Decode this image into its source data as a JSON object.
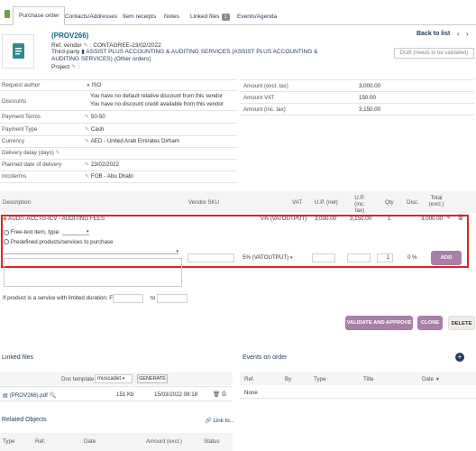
{
  "tabs": [
    {
      "label": "Purchase order"
    },
    {
      "label": "Contacts/Addresses"
    },
    {
      "label": "Item receipts"
    },
    {
      "label": "Notes"
    },
    {
      "label": "Linked files",
      "badge": "1"
    },
    {
      "label": "Events/Agenda"
    }
  ],
  "header": {
    "ref": "(PROV266)",
    "ref_vendor_label": "Ref. vendor",
    "ref_vendor_value": ": CONTAGREE-23/02/2022",
    "third_party_label": "Third-party",
    "third_party_value": "ASSIST PLUS ACCOUNTING & AUDITING SERVICES (ASSIST PLUS ACCOUNTING & AUDITING SERVICES)",
    "other_orders": "(Other orders)",
    "project_label": "Project",
    "back_to_list": "Back to list",
    "status": "Draft (needs to be validated)"
  },
  "details": {
    "request_author_label": "Request author",
    "request_author_value": "ISO",
    "discounts_label": "Discounts",
    "discount_line1": "You have no default relative discount from this vendor",
    "discount_line2": "You have no discount credit available from this vendor",
    "payment_terms_label": "Payment Terms",
    "payment_terms_value": "50-50",
    "payment_type_label": "Payment Type",
    "payment_type_value": "Cash",
    "currency_label": "Currency",
    "currency_value": "AED - United Arab Emirates Dirham",
    "delivery_delay_label": "Delivery delay (days)",
    "planned_delivery_label": "Planned date of delivery",
    "planned_delivery_value": "23/02/2022",
    "incoterms_label": "Incoterms",
    "incoterms_value": "FOB - Abu Dhabi"
  },
  "amounts": {
    "excl_label": "Amount (excl. tax)",
    "excl_value": "3,000.00",
    "vat_label": "Amount VAT",
    "vat_value": "150.00",
    "inc_label": "Amount (inc. tax)",
    "inc_value": "3,150.00"
  },
  "lines_table": {
    "headers": {
      "description": "Description",
      "vendor_sku": "Vendor SKU",
      "vat": "VAT",
      "up_net": "U.P. (net)",
      "up_inc_1": "U.P. (inc.",
      "up_inc_2": "tax)",
      "qty": "Qty",
      "disc": "Disc.",
      "total_1": "Total",
      "total_2": "(excl.)"
    },
    "line": {
      "description": "AUDIT-ACCTG-ICV - AUDITING FEES",
      "vat": "5% (VATOUTPUT)",
      "up_net": "3,000.00",
      "up_inc": "3,150.00",
      "qty": "1",
      "total": "3,000.00"
    }
  },
  "add_line": {
    "free_text_label": "Free-text item, type:",
    "predefined_label": "Predefined products/services to purchase",
    "vat_select": "5% (VATOUTPUT)",
    "qty_value": "1",
    "disc_value": "0 %",
    "add_button": "ADD",
    "service_text": "If product is a service with limited duration: From",
    "to_text": "to"
  },
  "actions": {
    "validate": "VALIDATE AND APPROVE",
    "clone": "CLONE",
    "delete": "DELETE"
  },
  "linked_files": {
    "title": "Linked files",
    "doc_template_label": "Doc template",
    "doc_template_value": "muscadet",
    "generate_button": "GENERATE",
    "file_name": "(PROV266).pdf",
    "file_size": "151 Kb",
    "file_date": "15/03/2022 08:18"
  },
  "events": {
    "title": "Events on order",
    "headers": [
      "Ref.",
      "By",
      "Type",
      "Title",
      "Date"
    ],
    "empty": "None"
  },
  "related": {
    "title": "Related Objects",
    "link_to": "Link to...",
    "headers": [
      "Type",
      "Ref.",
      "Date",
      "Amount (excl.)",
      "Status"
    ]
  }
}
